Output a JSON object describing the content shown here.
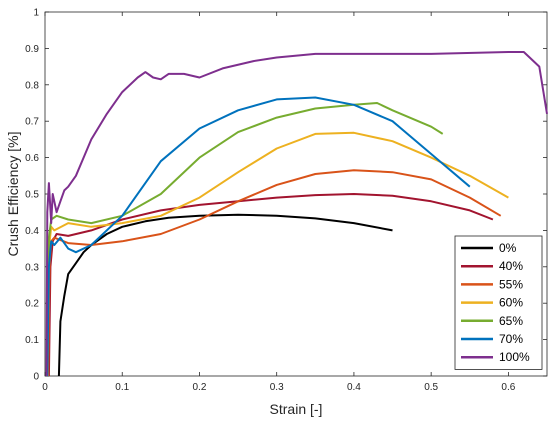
{
  "chart_data": {
    "type": "line",
    "title": "",
    "xlabel": "Strain [-]",
    "ylabel": "Crush Efficiency [%]",
    "xlim": [
      0,
      0.65
    ],
    "ylim": [
      0,
      1
    ],
    "xticks": [
      0,
      0.1,
      0.2,
      0.3,
      0.4,
      0.5,
      0.6
    ],
    "xtick_labels": [
      "0",
      "0.1",
      "0.2",
      "0.3",
      "0.4",
      "0.5",
      "0.6"
    ],
    "yticks": [
      0,
      0.1,
      0.2,
      0.3,
      0.4,
      0.5,
      0.6,
      0.7,
      0.8,
      0.9,
      1
    ],
    "ytick_labels": [
      "0",
      "0.1",
      "0.2",
      "0.3",
      "0.4",
      "0.5",
      "0.6",
      "0.7",
      "0.8",
      "0.9",
      "1"
    ],
    "grid": false,
    "legend_position": "bottom-right",
    "series": [
      {
        "name": "0%",
        "color": "#000000",
        "points": [
          [
            0.018,
            0
          ],
          [
            0.02,
            0.15
          ],
          [
            0.025,
            0.22
          ],
          [
            0.03,
            0.28
          ],
          [
            0.04,
            0.31
          ],
          [
            0.05,
            0.34
          ],
          [
            0.06,
            0.36
          ],
          [
            0.08,
            0.39
          ],
          [
            0.1,
            0.41
          ],
          [
            0.13,
            0.425
          ],
          [
            0.16,
            0.435
          ],
          [
            0.2,
            0.44
          ],
          [
            0.25,
            0.443
          ],
          [
            0.3,
            0.44
          ],
          [
            0.35,
            0.433
          ],
          [
            0.4,
            0.42
          ],
          [
            0.45,
            0.4
          ]
        ]
      },
      {
        "name": "40%",
        "color": "#A2142F",
        "points": [
          [
            0.005,
            0
          ],
          [
            0.007,
            0.3
          ],
          [
            0.01,
            0.37
          ],
          [
            0.015,
            0.39
          ],
          [
            0.03,
            0.385
          ],
          [
            0.06,
            0.4
          ],
          [
            0.1,
            0.43
          ],
          [
            0.15,
            0.455
          ],
          [
            0.2,
            0.47
          ],
          [
            0.25,
            0.48
          ],
          [
            0.3,
            0.49
          ],
          [
            0.35,
            0.497
          ],
          [
            0.4,
            0.5
          ],
          [
            0.45,
            0.495
          ],
          [
            0.5,
            0.48
          ],
          [
            0.55,
            0.455
          ],
          [
            0.58,
            0.43
          ]
        ]
      },
      {
        "name": "55%",
        "color": "#D95319",
        "points": [
          [
            0.004,
            0
          ],
          [
            0.006,
            0.3
          ],
          [
            0.008,
            0.37
          ],
          [
            0.012,
            0.38
          ],
          [
            0.03,
            0.365
          ],
          [
            0.06,
            0.36
          ],
          [
            0.1,
            0.37
          ],
          [
            0.15,
            0.39
          ],
          [
            0.2,
            0.43
          ],
          [
            0.25,
            0.48
          ],
          [
            0.3,
            0.525
          ],
          [
            0.35,
            0.555
          ],
          [
            0.4,
            0.565
          ],
          [
            0.45,
            0.56
          ],
          [
            0.5,
            0.54
          ],
          [
            0.55,
            0.49
          ],
          [
            0.59,
            0.44
          ]
        ]
      },
      {
        "name": "60%",
        "color": "#EDB120",
        "points": [
          [
            0.003,
            0
          ],
          [
            0.005,
            0.35
          ],
          [
            0.008,
            0.41
          ],
          [
            0.012,
            0.4
          ],
          [
            0.03,
            0.42
          ],
          [
            0.06,
            0.41
          ],
          [
            0.1,
            0.42
          ],
          [
            0.15,
            0.44
          ],
          [
            0.2,
            0.49
          ],
          [
            0.25,
            0.56
          ],
          [
            0.3,
            0.625
          ],
          [
            0.35,
            0.665
          ],
          [
            0.4,
            0.668
          ],
          [
            0.45,
            0.645
          ],
          [
            0.5,
            0.6
          ],
          [
            0.55,
            0.55
          ],
          [
            0.6,
            0.49
          ]
        ]
      },
      {
        "name": "65%",
        "color": "#77AC30",
        "points": [
          [
            0.003,
            0
          ],
          [
            0.005,
            0.38
          ],
          [
            0.008,
            0.43
          ],
          [
            0.015,
            0.44
          ],
          [
            0.03,
            0.43
          ],
          [
            0.06,
            0.42
          ],
          [
            0.1,
            0.44
          ],
          [
            0.15,
            0.5
          ],
          [
            0.2,
            0.6
          ],
          [
            0.25,
            0.67
          ],
          [
            0.3,
            0.71
          ],
          [
            0.35,
            0.735
          ],
          [
            0.4,
            0.745
          ],
          [
            0.43,
            0.75
          ],
          [
            0.45,
            0.73
          ],
          [
            0.5,
            0.685
          ],
          [
            0.515,
            0.665
          ]
        ]
      },
      {
        "name": "70%",
        "color": "#0072BD",
        "points": [
          [
            0.003,
            0
          ],
          [
            0.005,
            0.3
          ],
          [
            0.008,
            0.37
          ],
          [
            0.012,
            0.36
          ],
          [
            0.02,
            0.38
          ],
          [
            0.03,
            0.35
          ],
          [
            0.04,
            0.34
          ],
          [
            0.06,
            0.36
          ],
          [
            0.1,
            0.44
          ],
          [
            0.15,
            0.59
          ],
          [
            0.2,
            0.68
          ],
          [
            0.25,
            0.73
          ],
          [
            0.3,
            0.76
          ],
          [
            0.35,
            0.765
          ],
          [
            0.4,
            0.745
          ],
          [
            0.45,
            0.7
          ],
          [
            0.5,
            0.61
          ],
          [
            0.55,
            0.52
          ]
        ]
      },
      {
        "name": "100%",
        "color": "#7E2F8E",
        "points": [
          [
            0.002,
            0
          ],
          [
            0.003,
            0.45
          ],
          [
            0.005,
            0.53
          ],
          [
            0.008,
            0.42
          ],
          [
            0.01,
            0.5
          ],
          [
            0.015,
            0.45
          ],
          [
            0.02,
            0.48
          ],
          [
            0.025,
            0.51
          ],
          [
            0.03,
            0.52
          ],
          [
            0.04,
            0.55
          ],
          [
            0.05,
            0.6
          ],
          [
            0.06,
            0.65
          ],
          [
            0.08,
            0.72
          ],
          [
            0.1,
            0.78
          ],
          [
            0.12,
            0.82
          ],
          [
            0.13,
            0.835
          ],
          [
            0.14,
            0.82
          ],
          [
            0.15,
            0.815
          ],
          [
            0.16,
            0.83
          ],
          [
            0.18,
            0.83
          ],
          [
            0.2,
            0.82
          ],
          [
            0.23,
            0.845
          ],
          [
            0.27,
            0.865
          ],
          [
            0.3,
            0.875
          ],
          [
            0.35,
            0.885
          ],
          [
            0.4,
            0.885
          ],
          [
            0.5,
            0.885
          ],
          [
            0.6,
            0.89
          ],
          [
            0.62,
            0.89
          ],
          [
            0.64,
            0.85
          ],
          [
            0.65,
            0.72
          ]
        ]
      }
    ]
  }
}
